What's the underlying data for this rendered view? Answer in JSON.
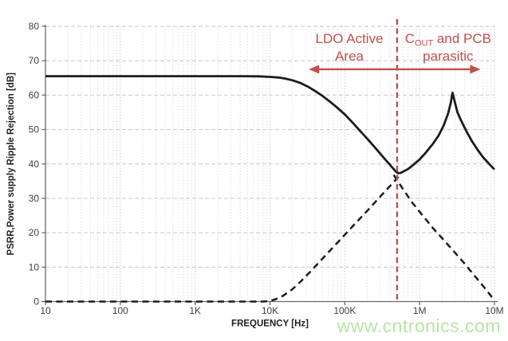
{
  "watermark": "www.cntronics.com",
  "colors": {
    "accent_red": "#c0504d",
    "curve_black": "#1c1c1c",
    "grid_minor": "#dedede",
    "grid_major": "#c9c9c9",
    "axis": "#6b6b6b",
    "tick_text": "#3f3f3f",
    "axis_title_text": "#1f1f1f",
    "watermark_green": "#b5e3a3"
  },
  "chart_data": {
    "type": "line",
    "title": "",
    "x_axis": {
      "label": "FREQUENCY [Hz]",
      "scale": "log",
      "min": 10,
      "max": 10000000,
      "tick_values": [
        10,
        100,
        1000,
        10000,
        100000,
        1000000,
        10000000
      ],
      "tick_labels": [
        "10",
        "100",
        "1K",
        "10K",
        "100K",
        "1M",
        "10M"
      ],
      "grid": "dashed major and minor log gridlines"
    },
    "y_axis": {
      "label": "PSRR,Power supply Ripple Rejection [dB]",
      "min": 0,
      "max": 80,
      "tick_step": 10,
      "tick_labels": [
        "0",
        "10",
        "20",
        "30",
        "40",
        "50",
        "60",
        "70",
        "80"
      ]
    },
    "series": [
      {
        "id": "psrr-solid",
        "style": "solid",
        "points": [
          [
            10,
            65.5
          ],
          [
            100,
            65.5
          ],
          [
            1000,
            65.5
          ],
          [
            4000,
            65.5
          ],
          [
            7000,
            65.45
          ],
          [
            10000,
            65.3
          ],
          [
            13000,
            65.1
          ],
          [
            16000,
            64.8
          ],
          [
            20000,
            64.3
          ],
          [
            25000,
            63.6
          ],
          [
            32000,
            62.5
          ],
          [
            40000,
            61.2
          ],
          [
            50000,
            59.8
          ],
          [
            65000,
            57.9
          ],
          [
            80000,
            56.3
          ],
          [
            100000,
            54.4
          ],
          [
            130000,
            51.8
          ],
          [
            160000,
            49.6
          ],
          [
            200000,
            47.3
          ],
          [
            250000,
            44.9
          ],
          [
            300000,
            42.9
          ],
          [
            350000,
            41.2
          ],
          [
            400000,
            39.8
          ],
          [
            450000,
            38.5
          ],
          [
            480000,
            37.8
          ],
          [
            520000,
            37.3
          ],
          [
            560000,
            37.4
          ],
          [
            620000,
            37.9
          ],
          [
            700000,
            38.5
          ],
          [
            800000,
            39.5
          ],
          [
            1000000,
            41.3
          ],
          [
            1200000,
            43.2
          ],
          [
            1500000,
            45.8
          ],
          [
            1800000,
            48.3
          ],
          [
            2100000,
            51.2
          ],
          [
            2400000,
            54.6
          ],
          [
            2600000,
            57.6
          ],
          [
            2750000,
            60.7
          ],
          [
            2950000,
            58.0
          ],
          [
            3200000,
            55.0
          ],
          [
            3600000,
            52.5
          ],
          [
            4200000,
            49.6
          ],
          [
            5000000,
            46.6
          ],
          [
            6000000,
            44.0
          ],
          [
            7000000,
            42.0
          ],
          [
            8500000,
            40.0
          ],
          [
            10000000,
            38.4
          ]
        ]
      },
      {
        "id": "dashed-rising",
        "style": "dashed",
        "points": [
          [
            10,
            0
          ],
          [
            1000,
            0
          ],
          [
            8000,
            0
          ],
          [
            10000,
            0.2
          ],
          [
            12000,
            0.7
          ],
          [
            15000,
            1.7
          ],
          [
            20000,
            3.6
          ],
          [
            26000,
            5.9
          ],
          [
            35000,
            8.8
          ],
          [
            50000,
            12.4
          ],
          [
            70000,
            15.8
          ],
          [
            100000,
            19.4
          ],
          [
            140000,
            22.8
          ],
          [
            200000,
            26.4
          ],
          [
            280000,
            29.9
          ],
          [
            380000,
            33.0
          ],
          [
            480000,
            35.4
          ],
          [
            540000,
            36.7
          ]
        ]
      },
      {
        "id": "dashed-falling",
        "style": "dashed",
        "points": [
          [
            450000,
            36.8
          ],
          [
            600000,
            32.7
          ],
          [
            800000,
            28.7
          ],
          [
            1000000,
            26.1
          ],
          [
            1500000,
            21.4
          ],
          [
            2000000,
            18.4
          ],
          [
            3000000,
            14.1
          ],
          [
            4000000,
            11.0
          ],
          [
            5000000,
            8.4
          ],
          [
            7000000,
            4.6
          ],
          [
            10000000,
            0.4
          ]
        ]
      }
    ],
    "annotations": {
      "divider_freq": 500000,
      "arrow": {
        "freq_start": 33000,
        "freq_end": 6500000,
        "db": 67.5
      },
      "ldo_label": {
        "lines": [
          "LDO Active",
          "Area"
        ],
        "freq_center": 115000
      },
      "cout_label": {
        "prefix": "C",
        "subscript": "OUT",
        "suffix": " and PCB",
        "line2": "parasitic",
        "freq_center": 2400000
      }
    }
  }
}
